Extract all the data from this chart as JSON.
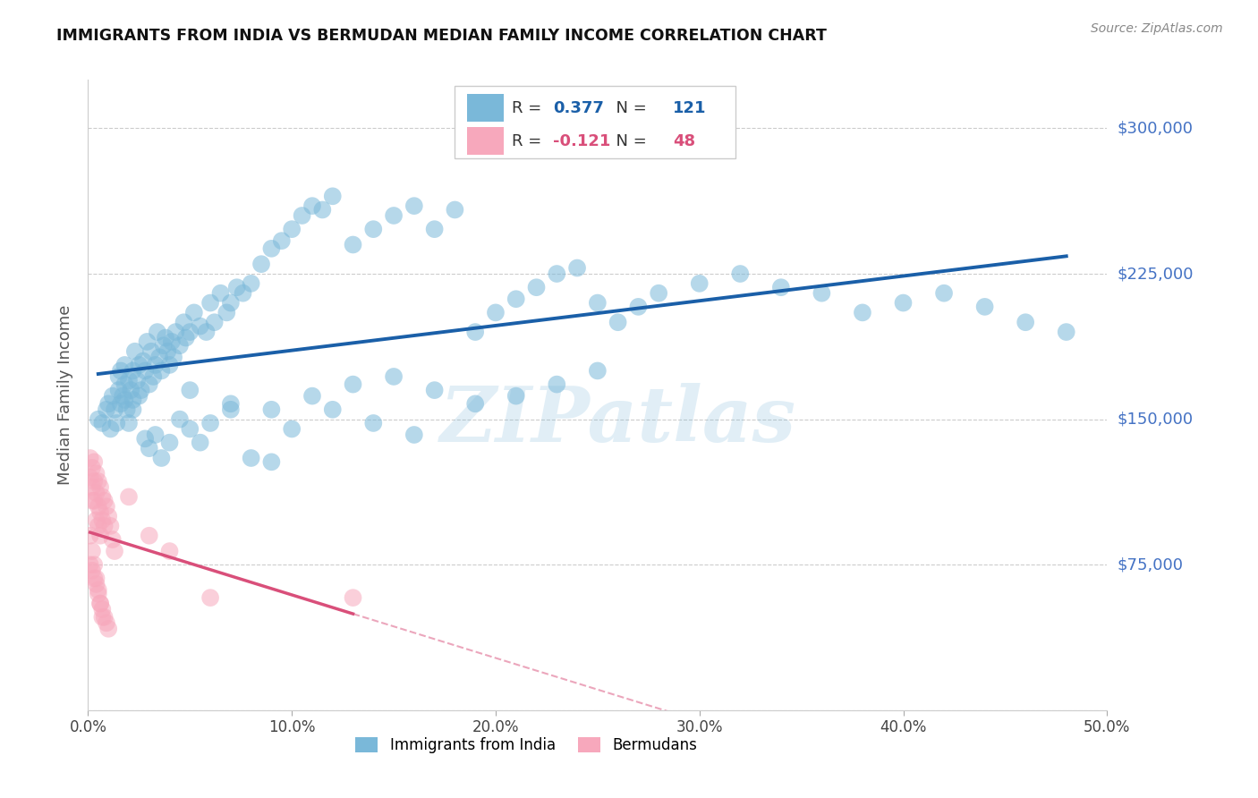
{
  "title": "IMMIGRANTS FROM INDIA VS BERMUDAN MEDIAN FAMILY INCOME CORRELATION CHART",
  "source": "Source: ZipAtlas.com",
  "ylabel": "Median Family Income",
  "xlim": [
    0.0,
    0.5
  ],
  "ylim": [
    0,
    325000
  ],
  "ytick_values": [
    0,
    75000,
    150000,
    225000,
    300000
  ],
  "ytick_labels_right": [
    "",
    "$75,000",
    "$150,000",
    "$225,000",
    "$300,000"
  ],
  "xtick_values": [
    0.0,
    0.1,
    0.2,
    0.3,
    0.4,
    0.5
  ],
  "xtick_labels": [
    "0.0%",
    "10.0%",
    "20.0%",
    "30.0%",
    "40.0%",
    "50.0%"
  ],
  "blue_scatter_color": "#7ab8d9",
  "pink_scatter_color": "#f7a8bc",
  "blue_line_color": "#1a5fa8",
  "pink_line_color": "#d94f7a",
  "R_blue": 0.377,
  "N_blue": 121,
  "R_pink": -0.121,
  "N_pink": 48,
  "legend_label_blue": "Immigrants from India",
  "legend_label_pink": "Bermudans",
  "watermark": "ZIPatlas",
  "grid_color": "#cccccc",
  "blue_x": [
    0.005,
    0.007,
    0.009,
    0.01,
    0.011,
    0.012,
    0.013,
    0.014,
    0.015,
    0.015,
    0.016,
    0.016,
    0.017,
    0.018,
    0.018,
    0.019,
    0.02,
    0.021,
    0.022,
    0.022,
    0.023,
    0.024,
    0.025,
    0.026,
    0.027,
    0.028,
    0.029,
    0.03,
    0.031,
    0.032,
    0.033,
    0.034,
    0.035,
    0.036,
    0.037,
    0.038,
    0.039,
    0.04,
    0.041,
    0.042,
    0.043,
    0.045,
    0.047,
    0.048,
    0.05,
    0.052,
    0.055,
    0.058,
    0.06,
    0.062,
    0.065,
    0.068,
    0.07,
    0.073,
    0.076,
    0.08,
    0.085,
    0.09,
    0.095,
    0.1,
    0.105,
    0.11,
    0.115,
    0.12,
    0.13,
    0.14,
    0.15,
    0.16,
    0.17,
    0.18,
    0.19,
    0.2,
    0.21,
    0.22,
    0.23,
    0.24,
    0.25,
    0.26,
    0.27,
    0.28,
    0.3,
    0.32,
    0.34,
    0.36,
    0.38,
    0.4,
    0.42,
    0.44,
    0.46,
    0.48,
    0.018,
    0.02,
    0.022,
    0.025,
    0.028,
    0.03,
    0.033,
    0.036,
    0.04,
    0.045,
    0.05,
    0.055,
    0.06,
    0.07,
    0.08,
    0.09,
    0.1,
    0.12,
    0.14,
    0.16,
    0.05,
    0.07,
    0.09,
    0.11,
    0.13,
    0.15,
    0.17,
    0.19,
    0.21,
    0.23,
    0.25
  ],
  "blue_y": [
    150000,
    148000,
    155000,
    158000,
    145000,
    162000,
    155000,
    148000,
    165000,
    172000,
    158000,
    175000,
    162000,
    168000,
    178000,
    155000,
    170000,
    165000,
    175000,
    160000,
    185000,
    170000,
    178000,
    165000,
    180000,
    175000,
    190000,
    168000,
    185000,
    172000,
    178000,
    195000,
    182000,
    175000,
    188000,
    192000,
    185000,
    178000,
    190000,
    182000,
    195000,
    188000,
    200000,
    192000,
    195000,
    205000,
    198000,
    195000,
    210000,
    200000,
    215000,
    205000,
    210000,
    218000,
    215000,
    220000,
    230000,
    238000,
    242000,
    248000,
    255000,
    260000,
    258000,
    265000,
    240000,
    248000,
    255000,
    260000,
    248000,
    258000,
    195000,
    205000,
    212000,
    218000,
    225000,
    228000,
    210000,
    200000,
    208000,
    215000,
    220000,
    225000,
    218000,
    215000,
    205000,
    210000,
    215000,
    208000,
    200000,
    195000,
    160000,
    148000,
    155000,
    162000,
    140000,
    135000,
    142000,
    130000,
    138000,
    150000,
    145000,
    138000,
    148000,
    155000,
    130000,
    128000,
    145000,
    155000,
    148000,
    142000,
    165000,
    158000,
    155000,
    162000,
    168000,
    172000,
    165000,
    158000,
    162000,
    168000,
    175000
  ],
  "pink_x": [
    0.001,
    0.001,
    0.002,
    0.002,
    0.002,
    0.003,
    0.003,
    0.003,
    0.004,
    0.004,
    0.004,
    0.005,
    0.005,
    0.005,
    0.006,
    0.006,
    0.006,
    0.007,
    0.007,
    0.008,
    0.008,
    0.009,
    0.01,
    0.011,
    0.012,
    0.013,
    0.001,
    0.002,
    0.003,
    0.004,
    0.005,
    0.006,
    0.007,
    0.008,
    0.009,
    0.01,
    0.001,
    0.002,
    0.003,
    0.004,
    0.005,
    0.006,
    0.007,
    0.02,
    0.03,
    0.04,
    0.06,
    0.13
  ],
  "pink_y": [
    120000,
    130000,
    125000,
    115000,
    108000,
    128000,
    118000,
    108000,
    122000,
    112000,
    98000,
    118000,
    105000,
    95000,
    115000,
    102000,
    90000,
    110000,
    98000,
    108000,
    95000,
    105000,
    100000,
    95000,
    88000,
    82000,
    75000,
    72000,
    68000,
    65000,
    60000,
    55000,
    52000,
    48000,
    45000,
    42000,
    90000,
    82000,
    75000,
    68000,
    62000,
    55000,
    48000,
    110000,
    90000,
    82000,
    58000,
    58000
  ]
}
